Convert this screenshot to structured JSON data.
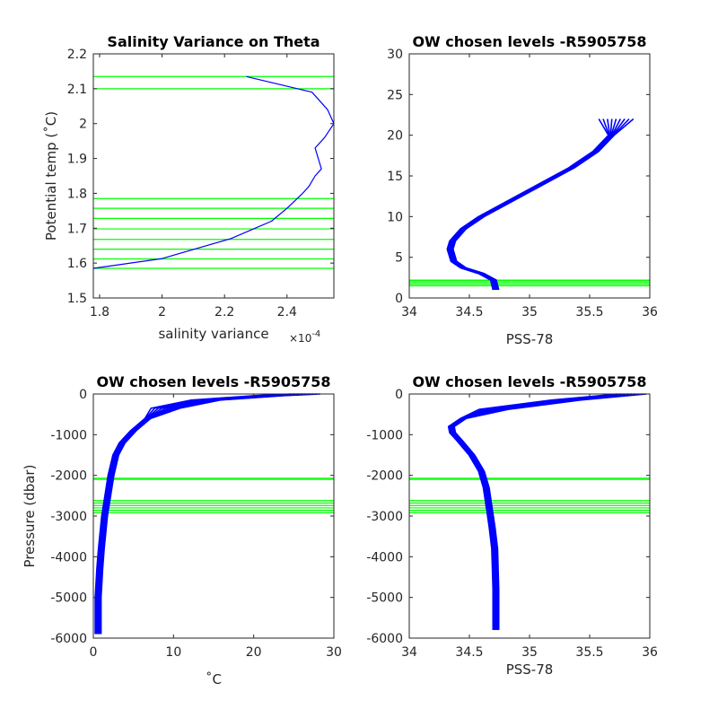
{
  "colors": {
    "profile": "#0000ff",
    "level": "#00ff00",
    "axis": "#262626"
  },
  "chart_data": [
    {
      "type": "line",
      "title": "Salinity Variance on Theta",
      "xlabel": "salinity variance",
      "x_exponent": "×10^-4",
      "x_exponent_base": "×10",
      "x_exponent_power": "-4",
      "ylabel": "Potential temp (˚C)",
      "xlim": [
        1.78,
        2.55
      ],
      "ylim": [
        1.5,
        2.2
      ],
      "xticks": [
        1.8,
        2,
        2.2,
        2.4
      ],
      "yticks": [
        1.5,
        1.6,
        1.7,
        1.8,
        1.9,
        2,
        2.1,
        2.2
      ],
      "xtick_labels": [
        "1.8",
        "2",
        "2.2",
        "2.4"
      ],
      "ytick_labels": [
        "1.5",
        "1.6",
        "1.7",
        "1.8",
        "1.9",
        "2",
        "2.1",
        "2.2"
      ],
      "series": [
        {
          "x": [
            1.78,
            2.0,
            2.22,
            2.35,
            2.4,
            2.45,
            2.47,
            2.49,
            2.51,
            2.5,
            2.49,
            2.52,
            2.55,
            2.53,
            2.48,
            2.27
          ],
          "y": [
            1.585,
            1.613,
            1.67,
            1.72,
            1.757,
            1.8,
            1.82,
            1.85,
            1.87,
            1.9,
            1.93,
            1.96,
            2.0,
            2.04,
            2.09,
            2.135
          ]
        }
      ],
      "levels": [
        1.585,
        1.612,
        1.64,
        1.668,
        1.698,
        1.728,
        1.757,
        1.785,
        2.1,
        2.135
      ]
    },
    {
      "type": "line",
      "title": "OW chosen levels -R5905758",
      "xlabel": "PSS-78",
      "ylabel": "",
      "xlim": [
        34,
        36
      ],
      "ylim": [
        0,
        30
      ],
      "xticks": [
        34,
        34.5,
        35,
        35.5,
        36
      ],
      "yticks": [
        0,
        5,
        10,
        15,
        20,
        25,
        30
      ],
      "xtick_labels": [
        "34",
        "34.5",
        "35",
        "35.5",
        "36"
      ],
      "ytick_labels": [
        "0",
        "5",
        "10",
        "15",
        "20",
        "25",
        "30"
      ],
      "series": [
        {
          "x": [
            34.72,
            34.7,
            34.6,
            34.45,
            34.37,
            34.34,
            34.36,
            34.45,
            34.6,
            34.85,
            35.1,
            35.35,
            35.55,
            35.68,
            35.72
          ],
          "y": [
            1.0,
            2.2,
            3.0,
            3.7,
            4.5,
            6.0,
            7.0,
            8.5,
            10.0,
            12.0,
            14.0,
            16.0,
            18.0,
            20.0,
            22.0
          ]
        }
      ],
      "spread": [
        0.18,
        0.16
      ],
      "spread_y": [
        20.0,
        26.0
      ],
      "spread_base": 35.45,
      "levels": [
        1.5,
        1.7,
        1.9,
        2.1,
        2.2
      ]
    },
    {
      "type": "line",
      "title": "OW chosen levels -R5905758",
      "xlabel": "˚C",
      "ylabel": "Pressure (dbar)",
      "xlim": [
        0,
        30
      ],
      "ylim": [
        -6000,
        0
      ],
      "xticks": [
        0,
        10,
        20,
        30
      ],
      "yticks": [
        -6000,
        -5000,
        -4000,
        -3000,
        -2000,
        -1000,
        0
      ],
      "xtick_labels": [
        "0",
        "10",
        "20",
        "30"
      ],
      "ytick_labels": [
        "-6000",
        "-5000",
        "-4000",
        "-3000",
        "-2000",
        "-1000",
        "0"
      ],
      "series": [
        {
          "x": [
            26.5,
            22.0,
            14.0,
            9.0,
            6.8,
            5.0,
            3.6,
            2.8,
            2.2,
            1.8,
            1.4,
            1.0,
            0.8,
            0.6,
            0.6
          ],
          "y": [
            0,
            -40,
            -150,
            -350,
            -600,
            -900,
            -1200,
            -1500,
            -2000,
            -2500,
            -3000,
            -3800,
            -4300,
            -5000,
            -5900
          ]
        }
      ],
      "levels": [
        -2070,
        -2100,
        -2620,
        -2680,
        -2740,
        -2800,
        -2860,
        -2920
      ]
    },
    {
      "type": "line",
      "title": "OW chosen levels -R5905758",
      "xlabel": "PSS-78",
      "ylabel": "",
      "xlim": [
        34,
        36
      ],
      "ylim": [
        -6000,
        0
      ],
      "xticks": [
        34,
        34.5,
        35,
        35.5,
        36
      ],
      "yticks": [
        -6000,
        -5000,
        -4000,
        -3000,
        -2000,
        -1000,
        0
      ],
      "xtick_labels": [
        "34",
        "34.5",
        "35",
        "35.5",
        "36"
      ],
      "ytick_labels": [
        "-6000",
        "-5000",
        "-4000",
        "-3000",
        "-2000",
        "-1000",
        "0"
      ],
      "series": [
        {
          "x": [
            35.85,
            35.3,
            34.7,
            34.45,
            34.35,
            34.36,
            34.42,
            34.52,
            34.6,
            34.64,
            34.67,
            34.69,
            34.71,
            34.72,
            34.72
          ],
          "y": [
            0,
            -150,
            -380,
            -600,
            -800,
            -950,
            -1150,
            -1500,
            -1900,
            -2300,
            -2900,
            -3300,
            -3800,
            -4800,
            -5800
          ]
        }
      ],
      "levels": [
        -2070,
        -2100,
        -2620,
        -2680,
        -2740,
        -2800,
        -2860,
        -2920
      ]
    }
  ]
}
